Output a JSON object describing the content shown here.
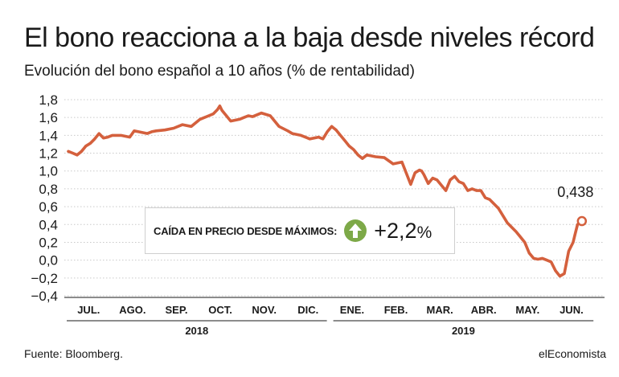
{
  "header": {
    "title": "El bono reacciona a la baja desde niveles récord",
    "subtitle": "Evolución del bono español a 10 años (% de rentabilidad)"
  },
  "callout": {
    "label": "CAÍDA EN PRECIO DESDE MÁXIMOS:",
    "value": "+2,2",
    "unit": "%",
    "icon": "arrow-up-circle-icon",
    "icon_color": "#7da948"
  },
  "footer": {
    "source": "Fuente: Bloomberg.",
    "brand": "elEconomista"
  },
  "chart_data": {
    "type": "line",
    "title": "El bono reacciona a la baja desde niveles récord",
    "subtitle": "Evolución del bono español a 10 años (% de rentabilidad)",
    "xlabel": "",
    "ylabel": "",
    "ylim": [
      -0.4,
      1.8
    ],
    "yticks": [
      -0.4,
      -0.2,
      0.0,
      0.2,
      0.4,
      0.6,
      0.8,
      1.0,
      1.2,
      1.4,
      1.6,
      1.8
    ],
    "ytick_labels": [
      "−0,4",
      "−0,2",
      "0,0",
      "0,2",
      "0,4",
      "0,6",
      "0,8",
      "1,0",
      "1,2",
      "1,4",
      "1,6",
      "1,8"
    ],
    "grid": true,
    "line_color": "#d4603d",
    "months": [
      "JUL.",
      "AGO.",
      "SEP.",
      "OCT.",
      "NOV.",
      "DIC.",
      "ENE.",
      "FEB.",
      "MAR.",
      "ABR.",
      "MAY.",
      "JUN."
    ],
    "years": [
      {
        "label": "2018",
        "months": 6
      },
      {
        "label": "2019",
        "months": 6
      }
    ],
    "end_label": "0,438",
    "series": [
      {
        "x_month_index": [
          0.0,
          0.1,
          0.2,
          0.3,
          0.4,
          0.5,
          0.6,
          0.7,
          0.8,
          0.9,
          1.0,
          1.2,
          1.4,
          1.5,
          1.6,
          1.8,
          1.9,
          2.0,
          2.2,
          2.4,
          2.6,
          2.8,
          3.0,
          3.1,
          3.2,
          3.3,
          3.4,
          3.45,
          3.5,
          3.6,
          3.7,
          3.8,
          3.9,
          4.0,
          4.1,
          4.2,
          4.4,
          4.6,
          4.8,
          5.0,
          5.1,
          5.3,
          5.5,
          5.7,
          5.8,
          5.9,
          6.0,
          6.05,
          6.1,
          6.2,
          6.3,
          6.4,
          6.5,
          6.6,
          6.7,
          6.8,
          6.9,
          7.0,
          7.2,
          7.4,
          7.6,
          7.8,
          7.9,
          8.0,
          8.05,
          8.1,
          8.2,
          8.3,
          8.4,
          8.5,
          8.6,
          8.7,
          8.8,
          8.9,
          9.0,
          9.1,
          9.2,
          9.3,
          9.4,
          9.5,
          9.6,
          9.8,
          10.0,
          10.2,
          10.3,
          10.4,
          10.5,
          10.6,
          10.7,
          10.8,
          10.9,
          11.0,
          11.1,
          11.2,
          11.3,
          11.4,
          11.5,
          11.55,
          11.6,
          11.7
        ],
        "values": [
          1.22,
          1.2,
          1.18,
          1.22,
          1.28,
          1.31,
          1.36,
          1.42,
          1.37,
          1.38,
          1.4,
          1.4,
          1.38,
          1.45,
          1.44,
          1.42,
          1.44,
          1.45,
          1.46,
          1.48,
          1.52,
          1.5,
          1.58,
          1.6,
          1.62,
          1.64,
          1.69,
          1.73,
          1.68,
          1.62,
          1.56,
          1.57,
          1.58,
          1.6,
          1.62,
          1.61,
          1.65,
          1.62,
          1.5,
          1.45,
          1.42,
          1.4,
          1.36,
          1.38,
          1.36,
          1.44,
          1.5,
          1.48,
          1.46,
          1.4,
          1.34,
          1.28,
          1.24,
          1.18,
          1.14,
          1.18,
          1.17,
          1.16,
          1.15,
          1.08,
          1.1,
          0.85,
          0.98,
          1.01,
          1.0,
          0.96,
          0.86,
          0.92,
          0.9,
          0.84,
          0.78,
          0.9,
          0.94,
          0.88,
          0.86,
          0.78,
          0.8,
          0.78,
          0.78,
          0.7,
          0.68,
          0.58,
          0.42,
          0.32,
          0.26,
          0.2,
          0.08,
          0.02,
          0.01,
          0.02,
          0.0,
          -0.02,
          -0.12,
          -0.18,
          -0.15,
          0.1,
          0.2,
          0.3,
          0.4,
          0.438
        ]
      }
    ]
  }
}
